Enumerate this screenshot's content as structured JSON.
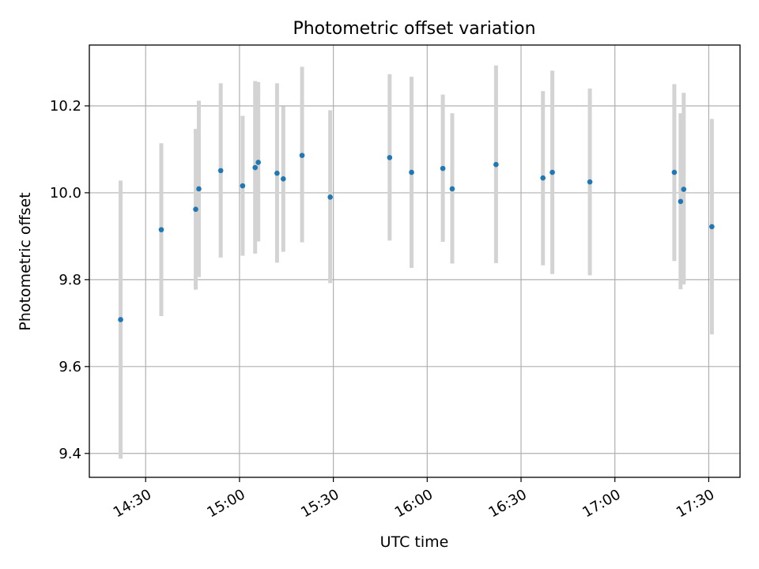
{
  "chart_data": {
    "type": "scatter",
    "title": "Photometric offset variation",
    "xlabel": "UTC time",
    "ylabel": "Photometric offset",
    "x_axis_kind": "time",
    "xlim": [
      "14:12",
      "17:40"
    ],
    "ylim": [
      9.345,
      10.34
    ],
    "x_ticks": [
      "14:30",
      "15:00",
      "15:30",
      "16:00",
      "16:30",
      "17:00",
      "17:30"
    ],
    "y_ticks": [
      9.4,
      9.6,
      9.8,
      10.0,
      10.2
    ],
    "y_tick_labels": [
      "9.4",
      "9.6",
      "9.8",
      "10.0",
      "10.2"
    ],
    "grid": true,
    "legend": "none",
    "marker_color": "#1f77b4",
    "errorbar_color": "#d3d3d3",
    "series": [
      {
        "points": [
          {
            "x": "14:22",
            "y": 9.708,
            "err_low": 9.388,
            "err_high": 10.028
          },
          {
            "x": "14:35",
            "y": 9.915,
            "err_low": 9.716,
            "err_high": 10.114
          },
          {
            "x": "14:46",
            "y": 9.962,
            "err_low": 9.777,
            "err_high": 10.147
          },
          {
            "x": "14:47",
            "y": 10.009,
            "err_low": 9.806,
            "err_high": 10.212
          },
          {
            "x": "14:54",
            "y": 10.051,
            "err_low": 9.851,
            "err_high": 10.252
          },
          {
            "x": "15:01",
            "y": 10.016,
            "err_low": 9.855,
            "err_high": 10.177
          },
          {
            "x": "15:05",
            "y": 10.058,
            "err_low": 9.86,
            "err_high": 10.257
          },
          {
            "x": "15:06",
            "y": 10.07,
            "err_low": 9.888,
            "err_high": 10.255
          },
          {
            "x": "15:12",
            "y": 10.045,
            "err_low": 9.839,
            "err_high": 10.252
          },
          {
            "x": "15:14",
            "y": 10.032,
            "err_low": 9.864,
            "err_high": 10.199
          },
          {
            "x": "15:20",
            "y": 10.086,
            "err_low": 9.886,
            "err_high": 10.29
          },
          {
            "x": "15:29",
            "y": 9.99,
            "err_low": 9.792,
            "err_high": 10.19
          },
          {
            "x": "15:48",
            "y": 10.081,
            "err_low": 9.89,
            "err_high": 10.273
          },
          {
            "x": "15:55",
            "y": 10.047,
            "err_low": 9.827,
            "err_high": 10.267
          },
          {
            "x": "16:05",
            "y": 10.056,
            "err_low": 9.887,
            "err_high": 10.226
          },
          {
            "x": "16:08",
            "y": 10.009,
            "err_low": 9.837,
            "err_high": 10.183
          },
          {
            "x": "16:22",
            "y": 10.065,
            "err_low": 9.838,
            "err_high": 10.293
          },
          {
            "x": "16:37",
            "y": 10.034,
            "err_low": 9.833,
            "err_high": 10.234
          },
          {
            "x": "16:40",
            "y": 10.047,
            "err_low": 9.813,
            "err_high": 10.281
          },
          {
            "x": "16:52",
            "y": 10.025,
            "err_low": 9.81,
            "err_high": 10.24
          },
          {
            "x": "17:19",
            "y": 10.047,
            "err_low": 9.843,
            "err_high": 10.25
          },
          {
            "x": "17:21",
            "y": 9.98,
            "err_low": 9.778,
            "err_high": 10.183
          },
          {
            "x": "17:22",
            "y": 10.008,
            "err_low": 9.789,
            "err_high": 10.23
          },
          {
            "x": "17:31",
            "y": 9.922,
            "err_low": 9.674,
            "err_high": 10.17
          }
        ]
      }
    ]
  }
}
